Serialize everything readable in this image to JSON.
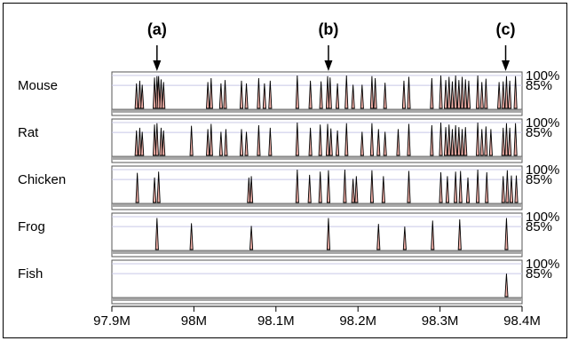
{
  "chart_data": {
    "type": "line",
    "title": "",
    "xlabel": "",
    "ylabel": "",
    "x_ticks": [
      "97.9M",
      "98M",
      "98.1M",
      "98.2M",
      "98.3M",
      "98.4M"
    ],
    "x_tick_values": [
      97.9,
      98.0,
      98.1,
      98.2,
      98.3,
      98.4
    ],
    "xlim": [
      97.9,
      98.4
    ],
    "ylim": [
      50,
      100
    ],
    "y_tick_labels": [
      "100%",
      "85%"
    ],
    "y_tick_values": [
      100,
      85
    ],
    "grid": true,
    "annotations": [
      {
        "label": "(a)",
        "x": 97.955
      },
      {
        "label": "(b)",
        "x": 98.164
      },
      {
        "label": "(c)",
        "x": 98.38
      }
    ],
    "series": [
      {
        "name": "Mouse",
        "peaks": [
          [
            97.93,
            88
          ],
          [
            97.934,
            92
          ],
          [
            97.937,
            86
          ],
          [
            97.952,
            97
          ],
          [
            97.955,
            99
          ],
          [
            97.957,
            99
          ],
          [
            97.96,
            94
          ],
          [
            97.963,
            90
          ],
          [
            98.017,
            90
          ],
          [
            98.021,
            96
          ],
          [
            98.033,
            88
          ],
          [
            98.038,
            93
          ],
          [
            98.058,
            92
          ],
          [
            98.064,
            88
          ],
          [
            98.079,
            96
          ],
          [
            98.086,
            88
          ],
          [
            98.093,
            92
          ],
          [
            98.126,
            100
          ],
          [
            98.142,
            92
          ],
          [
            98.155,
            91
          ],
          [
            98.163,
            99
          ],
          [
            98.166,
            97
          ],
          [
            98.175,
            88
          ],
          [
            98.186,
            100
          ],
          [
            98.194,
            86
          ],
          [
            98.205,
            86
          ],
          [
            98.217,
            99
          ],
          [
            98.221,
            96
          ],
          [
            98.233,
            89
          ],
          [
            98.256,
            92
          ],
          [
            98.262,
            98
          ],
          [
            98.29,
            96
          ],
          [
            98.301,
            100
          ],
          [
            98.307,
            93
          ],
          [
            98.311,
            98
          ],
          [
            98.315,
            91
          ],
          [
            98.319,
            100
          ],
          [
            98.323,
            93
          ],
          [
            98.327,
            98
          ],
          [
            98.331,
            94
          ],
          [
            98.335,
            92
          ],
          [
            98.346,
            100
          ],
          [
            98.351,
            90
          ],
          [
            98.356,
            95
          ],
          [
            98.372,
            90
          ],
          [
            98.377,
            91
          ],
          [
            98.381,
            99
          ],
          [
            98.385,
            92
          ],
          [
            98.392,
            99
          ]
        ]
      },
      {
        "name": "Rat",
        "peaks": [
          [
            97.93,
            88
          ],
          [
            97.934,
            92
          ],
          [
            97.937,
            86
          ],
          [
            97.952,
            97
          ],
          [
            97.955,
            99
          ],
          [
            97.96,
            92
          ],
          [
            97.963,
            88
          ],
          [
            97.997,
            95
          ],
          [
            98.017,
            90
          ],
          [
            98.021,
            98
          ],
          [
            98.033,
            86
          ],
          [
            98.039,
            90
          ],
          [
            98.058,
            90
          ],
          [
            98.064,
            86
          ],
          [
            98.079,
            96
          ],
          [
            98.093,
            92
          ],
          [
            98.126,
            100
          ],
          [
            98.142,
            92
          ],
          [
            98.154,
            97
          ],
          [
            98.163,
            98
          ],
          [
            98.167,
            91
          ],
          [
            98.175,
            88
          ],
          [
            98.186,
            99
          ],
          [
            98.205,
            86
          ],
          [
            98.217,
            99
          ],
          [
            98.225,
            90
          ],
          [
            98.233,
            86
          ],
          [
            98.249,
            90
          ],
          [
            98.262,
            98
          ],
          [
            98.29,
            96
          ],
          [
            98.301,
            100
          ],
          [
            98.307,
            93
          ],
          [
            98.311,
            97
          ],
          [
            98.315,
            90
          ],
          [
            98.319,
            96
          ],
          [
            98.323,
            93
          ],
          [
            98.327,
            90
          ],
          [
            98.331,
            93
          ],
          [
            98.346,
            100
          ],
          [
            98.351,
            90
          ],
          [
            98.356,
            94
          ],
          [
            98.362,
            90
          ],
          [
            98.377,
            92
          ],
          [
            98.381,
            99
          ],
          [
            98.385,
            92
          ],
          [
            98.392,
            99
          ]
        ]
      },
      {
        "name": "Chicken",
        "peaks": [
          [
            97.931,
            95
          ],
          [
            97.952,
            88
          ],
          [
            97.957,
            97
          ],
          [
            98.067,
            88
          ],
          [
            98.07,
            90
          ],
          [
            98.126,
            100
          ],
          [
            98.141,
            92
          ],
          [
            98.154,
            97
          ],
          [
            98.164,
            99
          ],
          [
            98.184,
            100
          ],
          [
            98.194,
            86
          ],
          [
            98.198,
            90
          ],
          [
            98.217,
            99
          ],
          [
            98.231,
            90
          ],
          [
            98.262,
            98
          ],
          [
            98.301,
            96
          ],
          [
            98.309,
            90
          ],
          [
            98.319,
            97
          ],
          [
            98.325,
            98
          ],
          [
            98.334,
            88
          ],
          [
            98.346,
            100
          ],
          [
            98.357,
            96
          ],
          [
            98.377,
            90
          ],
          [
            98.382,
            99
          ],
          [
            98.387,
            91
          ],
          [
            98.393,
            91
          ]
        ]
      },
      {
        "name": "Frog",
        "peaks": [
          [
            97.955,
            98
          ],
          [
            97.997,
            90
          ],
          [
            98.07,
            86
          ],
          [
            98.164,
            98
          ],
          [
            98.225,
            89
          ],
          [
            98.257,
            85
          ],
          [
            98.291,
            94
          ],
          [
            98.324,
            96
          ],
          [
            98.381,
            98
          ]
        ]
      },
      {
        "name": "Fish",
        "peaks": [
          [
            98.381,
            85
          ]
        ]
      }
    ]
  }
}
